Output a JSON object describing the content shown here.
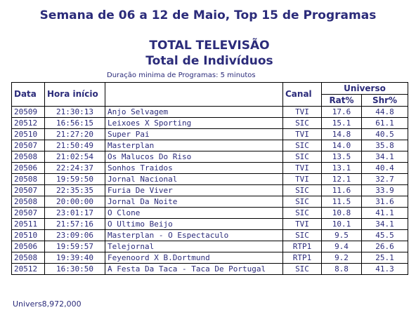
{
  "title": "Semana de 06 a 12 de Maio, Top 15 de Programas",
  "subtitle1": "TOTAL TELEVISÃO",
  "subtitle2": "Total de Indivíduos",
  "min_duration": "Duração minima de Programas: 5 minutos",
  "table": {
    "headers": {
      "data": "Data",
      "hora": "Hora início",
      "canal": "Canal",
      "universo": "Universo",
      "rat": "Rat%",
      "shr": "Shr%"
    },
    "rows": [
      {
        "data": "20509",
        "hora": "21:30:13",
        "programa": "Anjo Selvagem",
        "canal": "TVI",
        "rat": "17.6",
        "shr": "44.8"
      },
      {
        "data": "20512",
        "hora": "16:56:15",
        "programa": "Leixoes X Sporting",
        "canal": "SIC",
        "rat": "15.1",
        "shr": "61.1"
      },
      {
        "data": "20510",
        "hora": "21:27:20",
        "programa": "Super Pai",
        "canal": "TVI",
        "rat": "14.8",
        "shr": "40.5"
      },
      {
        "data": "20507",
        "hora": "21:50:49",
        "programa": "Masterplan",
        "canal": "SIC",
        "rat": "14.0",
        "shr": "35.8"
      },
      {
        "data": "20508",
        "hora": "21:02:54",
        "programa": "Os Malucos Do Riso",
        "canal": "SIC",
        "rat": "13.5",
        "shr": "34.1"
      },
      {
        "data": "20506",
        "hora": "22:24:37",
        "programa": "Sonhos Traidos",
        "canal": "TVI",
        "rat": "13.1",
        "shr": "40.4"
      },
      {
        "data": "20508",
        "hora": "19:59:50",
        "programa": "Jornal Nacional",
        "canal": "TVI",
        "rat": "12.1",
        "shr": "32.7"
      },
      {
        "data": "20507",
        "hora": "22:35:35",
        "programa": "Furia De Viver",
        "canal": "SIC",
        "rat": "11.6",
        "shr": "33.9"
      },
      {
        "data": "20508",
        "hora": "20:00:00",
        "programa": "Jornal Da Noite",
        "canal": "SIC",
        "rat": "11.5",
        "shr": "31.6"
      },
      {
        "data": "20507",
        "hora": "23:01:17",
        "programa": "O Clone",
        "canal": "SIC",
        "rat": "10.8",
        "shr": "41.1"
      },
      {
        "data": "20511",
        "hora": "21:57:16",
        "programa": "O Ultimo Beijo",
        "canal": "TVI",
        "rat": "10.1",
        "shr": "34.1"
      },
      {
        "data": "20510",
        "hora": "23:09:06",
        "programa": "Masterplan - O Espectaculo",
        "canal": "SIC",
        "rat": "9.5",
        "shr": "45.5"
      },
      {
        "data": "20506",
        "hora": "19:59:57",
        "programa": "Telejornal",
        "canal": "RTP1",
        "rat": "9.4",
        "shr": "26.6"
      },
      {
        "data": "20508",
        "hora": "19:39:40",
        "programa": "Feyenoord X B.Dortmund",
        "canal": "RTP1",
        "rat": "9.2",
        "shr": "25.1"
      },
      {
        "data": "20512",
        "hora": "16:30:50",
        "programa": "A Festa Da Taca - Taca De Portugal",
        "canal": "SIC",
        "rat": "8.8",
        "shr": "41.3"
      }
    ]
  },
  "footer": {
    "univers_label": "Univers",
    "univers_value": "8,972,000"
  }
}
